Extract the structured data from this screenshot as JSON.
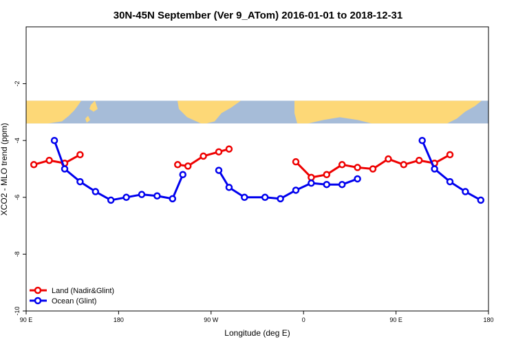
{
  "chart_data": {
    "type": "line",
    "title": "30N-45N September (Ver 9_ATom)   2016-01-01 to 2018-12-31",
    "xlabel": "Longitude (deg E)",
    "ylabel": "XCO2 - MLO trend (ppm)",
    "xlim": [
      90,
      540
    ],
    "ylim": [
      -10,
      0
    ],
    "x_ticks": [
      {
        "value": 90,
        "label": "90 E"
      },
      {
        "value": 180,
        "label": "180"
      },
      {
        "value": 270,
        "label": "90 W"
      },
      {
        "value": 360,
        "label": "0"
      },
      {
        "value": 450,
        "label": "90 E"
      },
      {
        "value": 540,
        "label": "180"
      }
    ],
    "y_ticks": [
      {
        "value": -2,
        "label": "-2"
      },
      {
        "value": -4,
        "label": "-4"
      },
      {
        "value": -6,
        "label": "-6"
      },
      {
        "value": -8,
        "label": "-8"
      },
      {
        "value": -10,
        "label": "-10"
      }
    ],
    "grid": false,
    "legend_position": "bottom-left",
    "map_band": {
      "y_top": -2.6,
      "y_bottom": -3.4,
      "ocean_color": "#a6bcd8",
      "land_color": "#fdd877"
    },
    "series": [
      {
        "name": "Land (Nadir&Glint)",
        "color": "#ee0000",
        "segments": [
          [
            [
              97.5,
              -4.85
            ],
            [
              112.5,
              -4.7
            ],
            [
              127.5,
              -4.8
            ],
            [
              142.5,
              -4.5
            ]
          ],
          [
            [
              237.5,
              -4.85
            ],
            [
              247.5,
              -4.9
            ],
            [
              262.5,
              -4.55
            ],
            [
              277.5,
              -4.4
            ],
            [
              287.5,
              -4.3
            ]
          ],
          [
            [
              352.5,
              -4.75
            ],
            [
              367.5,
              -5.3
            ],
            [
              382.5,
              -5.2
            ],
            [
              397.5,
              -4.85
            ],
            [
              412.5,
              -4.95
            ],
            [
              427.5,
              -5.0
            ],
            [
              442.5,
              -4.65
            ],
            [
              457.5,
              -4.85
            ],
            [
              472.5,
              -4.7
            ],
            [
              487.5,
              -4.8
            ],
            [
              502.5,
              -4.5
            ]
          ]
        ]
      },
      {
        "name": "Ocean (Glint)",
        "color": "#0000ee",
        "segments": [
          [
            [
              117.5,
              -4.0
            ],
            [
              127.5,
              -5.0
            ],
            [
              142.5,
              -5.45
            ],
            [
              157.5,
              -5.8
            ],
            [
              172.5,
              -6.1
            ],
            [
              187.5,
              -6.0
            ],
            [
              202.5,
              -5.9
            ],
            [
              217.5,
              -5.95
            ],
            [
              232.5,
              -6.05
            ],
            [
              242.5,
              -5.2
            ]
          ],
          [
            [
              277.5,
              -5.05
            ],
            [
              287.5,
              -5.65
            ],
            [
              302.5,
              -6.0
            ],
            [
              322.5,
              -6.0
            ],
            [
              337.5,
              -6.05
            ],
            [
              352.5,
              -5.75
            ],
            [
              367.5,
              -5.5
            ],
            [
              382.5,
              -5.55
            ],
            [
              397.5,
              -5.55
            ],
            [
              412.5,
              -5.35
            ]
          ],
          [
            [
              475.5,
              -4.0
            ],
            [
              487.5,
              -5.0
            ],
            [
              502.5,
              -5.45
            ],
            [
              517.5,
              -5.8
            ],
            [
              532.5,
              -6.1
            ]
          ]
        ]
      }
    ]
  }
}
